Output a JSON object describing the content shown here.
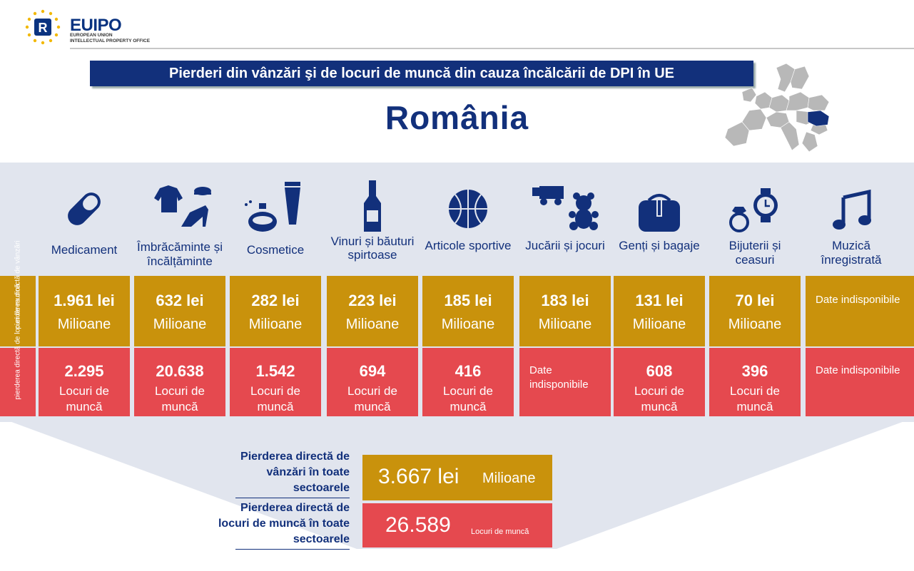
{
  "header": {
    "logo_text": "EUIPO",
    "logo_sub_1": "EUROPEAN UNION",
    "logo_sub_2": "INTELLECTUAL PROPERTY OFFICE",
    "title": "Pierderi din vânzări şi de locuri de muncă din cauza încălcării de DPI în UE",
    "country": "România"
  },
  "row_labels": {
    "sales": "pierderea directă de vânzări",
    "jobs": "pierderea directă de locuri de muncă"
  },
  "sectors": [
    {
      "label": "Medicament",
      "icon": "pill-icon",
      "sales": "1.961 lei",
      "sales_unit": "Milioane",
      "jobs": "2.295",
      "jobs_unit": "Locuri de muncă"
    },
    {
      "label": "Îmbrăcăminte și încălțăminte",
      "icon": "clothing-icon",
      "sales": "632 lei",
      "sales_unit": "Milioane",
      "jobs": "20.638",
      "jobs_unit": "Locuri de muncă"
    },
    {
      "label": "Cosmetice",
      "icon": "cosmetics-icon",
      "sales": "282 lei",
      "sales_unit": "Milioane",
      "jobs": "1.542",
      "jobs_unit": "Locuri de muncă"
    },
    {
      "label": "Vinuri și băuturi spirtoase",
      "icon": "bottle-icon",
      "sales": "223 lei",
      "sales_unit": "Milioane",
      "jobs": "694",
      "jobs_unit": "Locuri de muncă"
    },
    {
      "label": "Articole sportive",
      "icon": "basketball-icon",
      "sales": "185 lei",
      "sales_unit": "Milioane",
      "jobs": "416",
      "jobs_unit": "Locuri de muncă"
    },
    {
      "label": "Jucării și jocuri",
      "icon": "toys-icon",
      "sales": "183 lei",
      "sales_unit": "Milioane",
      "jobs_nodata": "Date indisponibile"
    },
    {
      "label": "Genți și bagaje",
      "icon": "bag-icon",
      "sales": "131 lei",
      "sales_unit": "Milioane",
      "jobs": "608",
      "jobs_unit": "Locuri de muncă"
    },
    {
      "label": "Bijuterii și ceasuri",
      "icon": "jewelry-watch-icon",
      "sales": "70 lei",
      "sales_unit": "Milioane",
      "jobs": "396",
      "jobs_unit": "Locuri de muncă"
    },
    {
      "label": "Muzică înregistrată",
      "icon": "music-note-icon",
      "sales_nodata": "Date indisponibile",
      "jobs_nodata": "Date indisponibile"
    }
  ],
  "totals": {
    "sales_label": "Pierderea directă de vânzări în toate sectoarele",
    "sales_value": "3.667 lei",
    "sales_unit": "Milioane",
    "jobs_label": "Pierderea directă de locuri de muncă în toate sectoarele",
    "jobs_value": "26.589",
    "jobs_unit": "Locuri de muncă"
  },
  "colors": {
    "navy": "#12307b",
    "gold": "#c9920c",
    "red": "#e5494f",
    "band": "#e1e5ee"
  }
}
